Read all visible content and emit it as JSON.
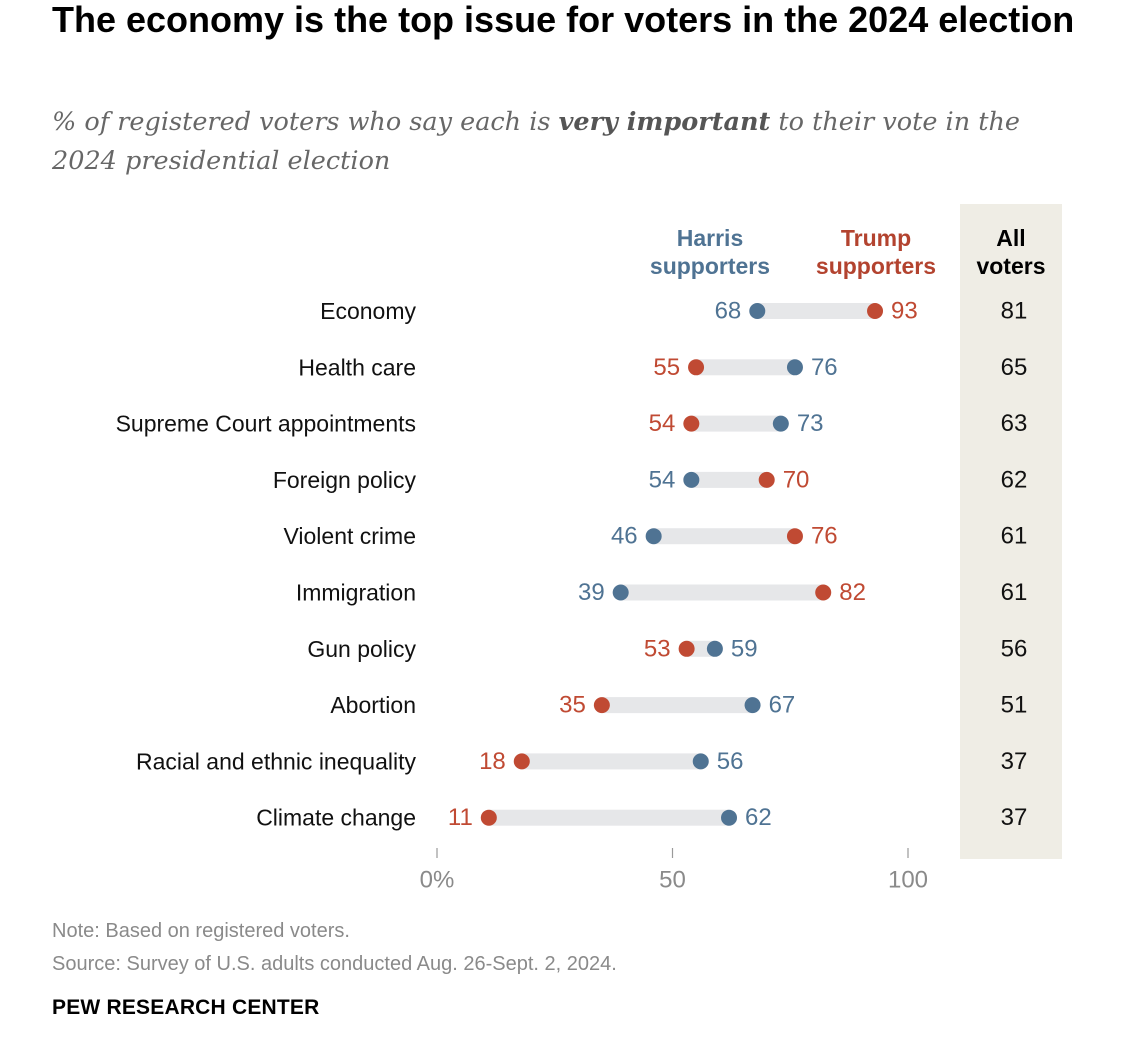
{
  "title": "The economy is the top issue for voters in the 2024 election",
  "subtitle": {
    "part1": "% of registered voters who say each is ",
    "emphasis": "very important",
    "part2": " to their vote in the 2024 presidential election"
  },
  "column_headers": {
    "harris": [
      "Harris",
      "supporters"
    ],
    "trump": [
      "Trump",
      "supporters"
    ],
    "all": [
      "All",
      "voters"
    ]
  },
  "colors": {
    "harris": "#4f7393",
    "trump": "#c04a33",
    "connector": "#e6e7e9",
    "all_bg": "#efede5",
    "axis": "#9a9a9a"
  },
  "chart_data": {
    "type": "dot",
    "title": "The economy is the top issue for voters in the 2024 election",
    "categories": [
      "Economy",
      "Health care",
      "Supreme Court appointments",
      "Foreign policy",
      "Violent crime",
      "Immigration",
      "Gun policy",
      "Abortion",
      "Racial and ethnic inequality",
      "Climate change"
    ],
    "series": [
      {
        "name": "Harris supporters",
        "values": [
          68,
          76,
          73,
          54,
          46,
          39,
          59,
          67,
          56,
          62
        ]
      },
      {
        "name": "Trump supporters",
        "values": [
          93,
          55,
          54,
          70,
          76,
          82,
          53,
          35,
          18,
          11
        ]
      },
      {
        "name": "All voters",
        "values": [
          81,
          65,
          63,
          62,
          61,
          61,
          56,
          51,
          37,
          37
        ]
      }
    ],
    "xlim": [
      0,
      100
    ],
    "xticks": [
      "0%",
      "50",
      "100"
    ],
    "xtick_values": [
      0,
      50,
      100
    ],
    "xlabel": "",
    "ylabel": ""
  },
  "notes": {
    "note": "Note: Based on registered voters.",
    "source": "Source: Survey of U.S. adults conducted Aug. 26-Sept. 2, 2024."
  },
  "brand": "PEW RESEARCH CENTER"
}
